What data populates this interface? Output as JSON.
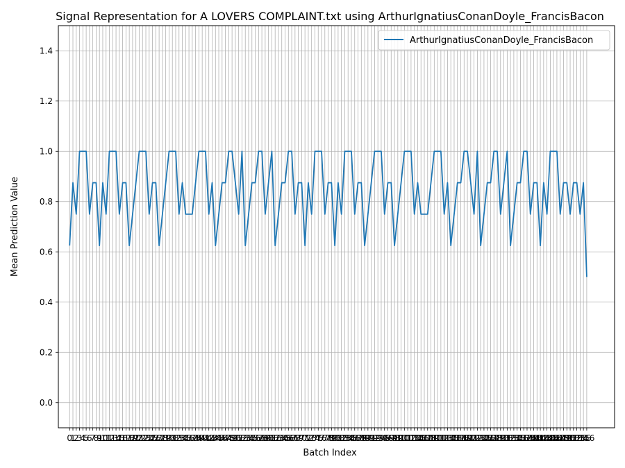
{
  "chart_data": {
    "type": "line",
    "title": "Signal Representation for A LOVERS COMPLAINT.txt using ArthurIgnatiusConanDoyle_FrancisBacon",
    "xlabel": "Batch Index",
    "ylabel": "Mean Prediction Value",
    "xlim": [
      -3.4,
      164.4
    ],
    "ylim": [
      -0.1,
      1.5
    ],
    "yticks": [
      0.0,
      0.2,
      0.4,
      0.6,
      0.8,
      1.0,
      1.2,
      1.4
    ],
    "grid": true,
    "legend_position": "top-right",
    "series": [
      {
        "name": "ArthurIgnatiusConanDoyle_FrancisBacon",
        "color": "#1f77b4",
        "values": [
          0.625,
          0.875,
          0.75,
          1.0,
          1.0,
          1.0,
          0.75,
          0.875,
          0.875,
          0.625,
          0.875,
          0.75,
          1.0,
          1.0,
          1.0,
          0.75,
          0.875,
          0.875,
          0.625,
          0.75,
          0.875,
          1.0,
          1.0,
          1.0,
          0.75,
          0.875,
          0.875,
          0.625,
          0.75,
          0.875,
          1.0,
          1.0,
          1.0,
          0.75,
          0.875,
          0.75,
          0.75,
          0.75,
          0.875,
          1.0,
          1.0,
          1.0,
          0.75,
          0.875,
          0.625,
          0.75,
          0.875,
          0.875,
          1.0,
          1.0,
          0.875,
          0.75,
          1.0,
          0.625,
          0.75,
          0.875,
          0.875,
          1.0,
          1.0,
          0.75,
          0.875,
          1.0,
          0.625,
          0.75,
          0.875,
          0.875,
          1.0,
          1.0,
          0.75,
          0.875,
          0.875,
          0.625,
          0.875,
          0.75,
          1.0,
          1.0,
          1.0,
          0.75,
          0.875,
          0.875,
          0.625,
          0.875,
          0.75,
          1.0,
          1.0,
          1.0,
          0.75,
          0.875,
          0.875,
          0.625,
          0.75,
          0.875,
          1.0,
          1.0,
          1.0,
          0.75,
          0.875,
          0.875,
          0.625,
          0.75,
          0.875,
          1.0,
          1.0,
          1.0,
          0.75,
          0.875,
          0.75,
          0.75,
          0.75,
          0.875,
          1.0,
          1.0,
          1.0,
          0.75,
          0.875,
          0.625,
          0.75,
          0.875,
          0.875,
          1.0,
          1.0,
          0.875,
          0.75,
          1.0,
          0.625,
          0.75,
          0.875,
          0.875,
          1.0,
          1.0,
          0.75,
          0.875,
          1.0,
          0.625,
          0.75,
          0.875,
          0.875,
          1.0,
          1.0,
          0.75,
          0.875,
          0.875,
          0.625,
          0.875,
          0.75,
          1.0,
          1.0,
          1.0,
          0.75,
          0.875,
          0.875,
          0.75,
          0.875,
          0.875,
          0.75,
          0.875,
          0.5
        ]
      }
    ]
  }
}
